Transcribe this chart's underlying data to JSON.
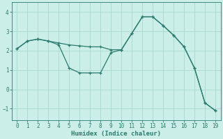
{
  "xlabel": "Humidex (Indice chaleur)",
  "line1_x": [
    0,
    1,
    2,
    3,
    4,
    5,
    6,
    7,
    8,
    9,
    10,
    11,
    12,
    13,
    14,
    15,
    16,
    17,
    18,
    19
  ],
  "line1_y": [
    2.1,
    2.5,
    2.6,
    2.5,
    2.4,
    2.3,
    2.25,
    2.2,
    2.2,
    2.05,
    2.05,
    2.9,
    3.75,
    3.75,
    3.3,
    2.8,
    2.2,
    1.1,
    -0.7,
    -1.1
  ],
  "line2_x": [
    0,
    1,
    2,
    3,
    4,
    5,
    6,
    7,
    8,
    9,
    10,
    11,
    12,
    13,
    14,
    15,
    16,
    17,
    18,
    19
  ],
  "line2_y": [
    2.1,
    2.5,
    2.6,
    2.5,
    2.3,
    1.1,
    0.85,
    0.85,
    0.85,
    1.9,
    2.05,
    2.9,
    3.75,
    3.75,
    3.3,
    2.8,
    2.2,
    1.1,
    -0.7,
    -1.1
  ],
  "line_color": "#2a7a6e",
  "bg_color": "#cceee8",
  "grid_color": "#a8d8d0",
  "xlim": [
    -0.5,
    19.5
  ],
  "ylim": [
    -1.6,
    4.5
  ],
  "yticks": [
    -1,
    0,
    1,
    2,
    3,
    4
  ],
  "xticks": [
    0,
    1,
    2,
    3,
    4,
    5,
    6,
    7,
    8,
    9,
    10,
    11,
    12,
    13,
    14,
    15,
    16,
    17,
    18,
    19
  ]
}
